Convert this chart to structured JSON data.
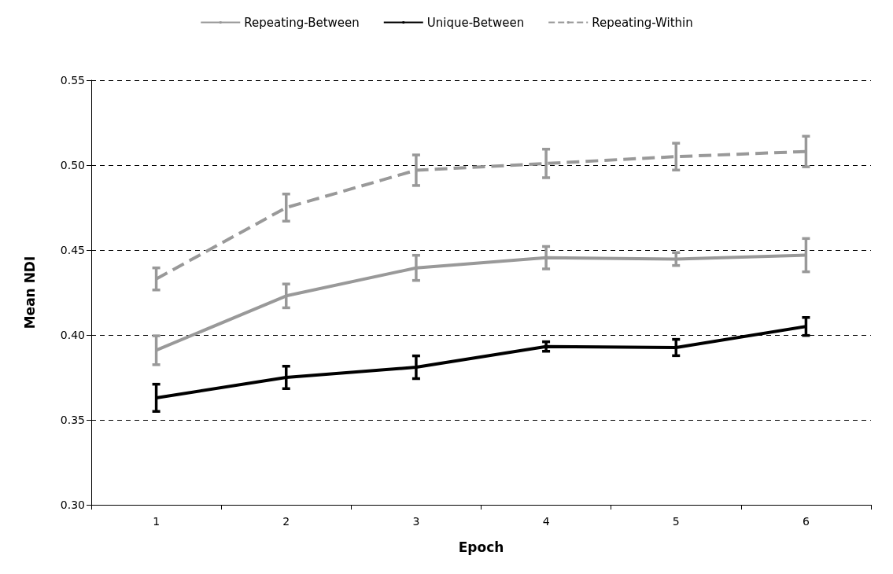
{
  "chart_data": {
    "type": "line",
    "xlabel": "Epoch",
    "ylabel": "Mean NDI",
    "categories": [
      "1",
      "2",
      "3",
      "4",
      "5",
      "6"
    ],
    "series": [
      {
        "name": "Repeating-Between",
        "color": "#999999",
        "line_style": "solid",
        "values": [
          0.391,
          0.423,
          0.4395,
          0.4455,
          0.4447,
          0.447
        ],
        "errors": [
          0.0085,
          0.007,
          0.0074,
          0.0066,
          0.0038,
          0.0098
        ]
      },
      {
        "name": "Unique-Between",
        "color": "#000000",
        "line_style": "solid",
        "values": [
          0.363,
          0.375,
          0.381,
          0.3932,
          0.3926,
          0.405
        ],
        "errors": [
          0.008,
          0.0066,
          0.0067,
          0.0028,
          0.0048,
          0.0053
        ]
      },
      {
        "name": "Repeating-Within",
        "color": "#999999",
        "line_style": "dashed",
        "values": [
          0.433,
          0.475,
          0.497,
          0.501,
          0.505,
          0.508
        ],
        "errors": [
          0.0065,
          0.008,
          0.009,
          0.0084,
          0.0079,
          0.009
        ]
      }
    ],
    "ylim": [
      0.3,
      0.55
    ],
    "yticks": [
      {
        "value": 0.3,
        "label": "0.30"
      },
      0.35,
      {
        "value": 0.4,
        "label": "0.40"
      },
      0.45,
      {
        "value": 0.5,
        "label": "0.50"
      },
      0.55
    ],
    "grid": "y",
    "legend": "top",
    "marker": "none"
  }
}
